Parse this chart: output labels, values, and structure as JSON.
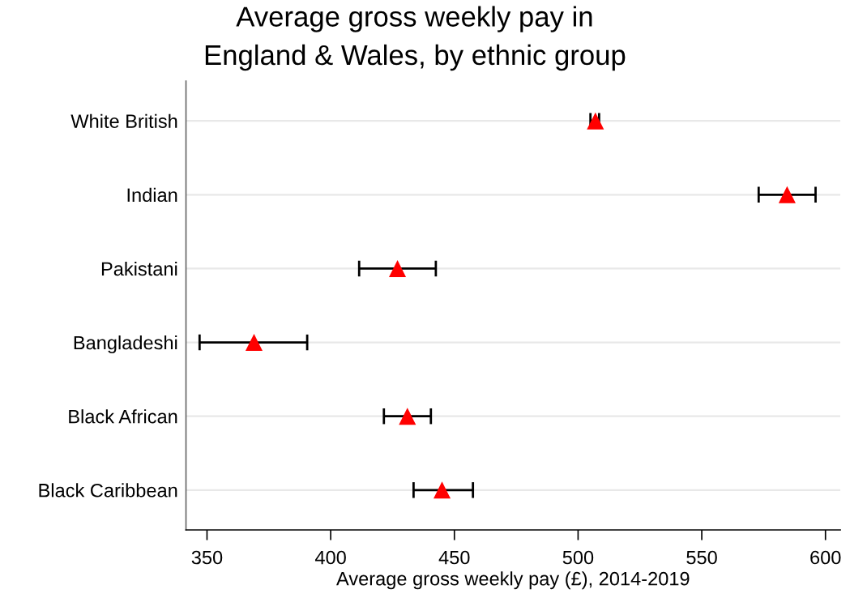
{
  "chart_data": {
    "type": "scatter",
    "title": "Average gross weekly pay in\nEngland & Wales, by ethnic group",
    "xlabel": "Average gross weekly pay (£), 2014-2019",
    "orientation": "horizontal",
    "categories": [
      "White British",
      "Indian",
      "Pakistani",
      "Bangladeshi",
      "Black African",
      "Black Caribbean"
    ],
    "values": [
      507,
      584.5,
      427,
      369,
      431,
      445
    ],
    "errors": [
      [
        505,
        508.5
      ],
      [
        573,
        596
      ],
      [
        411.5,
        442.5
      ],
      [
        347,
        390.5
      ],
      [
        421.5,
        440.5
      ],
      [
        433.5,
        457.5
      ]
    ],
    "color": "#ff0000",
    "marker": "triangle",
    "xlim": [
      341.5,
      606
    ],
    "xticks": [
      350,
      400,
      450,
      500,
      550,
      600
    ],
    "grid": "y"
  }
}
